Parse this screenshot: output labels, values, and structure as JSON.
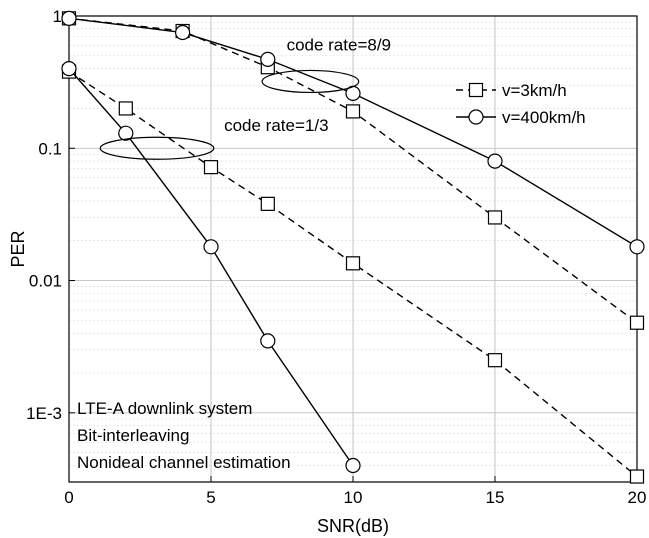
{
  "chart_data": {
    "type": "line",
    "title": "",
    "xlabel": "SNR(dB)",
    "ylabel": "PER",
    "xlim": [
      0,
      20
    ],
    "ylim": [
      0.0003,
      1
    ],
    "yscale": "log",
    "x_ticks": [
      0,
      5,
      10,
      15,
      20
    ],
    "x_tick_labels": [
      "0",
      "5",
      "10",
      "15",
      "20"
    ],
    "y_ticks": [
      1,
      0.1,
      0.01,
      0.001
    ],
    "y_tick_labels": [
      "1",
      "0.1",
      "0.01",
      "1E-3"
    ],
    "grid": true,
    "legend_position": "top-right",
    "series": [
      {
        "name": "v=3km/h",
        "group": "code rate=8/9",
        "line_style": "dashed",
        "marker": "square",
        "x": [
          0,
          4,
          7,
          10,
          15,
          20
        ],
        "y": [
          0.96,
          0.77,
          0.41,
          0.19,
          0.03,
          0.0048
        ]
      },
      {
        "name": "v=400km/h",
        "group": "code rate=8/9",
        "line_style": "solid",
        "marker": "circle",
        "x": [
          0,
          4,
          7,
          10,
          15,
          20
        ],
        "y": [
          0.96,
          0.75,
          0.47,
          0.26,
          0.08,
          0.018
        ]
      },
      {
        "name": "v=3km/h",
        "group": "code rate=1/3",
        "line_style": "dashed",
        "marker": "square",
        "x": [
          0,
          2,
          5,
          7,
          10,
          15,
          20
        ],
        "y": [
          0.38,
          0.2,
          0.072,
          0.038,
          0.0135,
          0.0025,
          0.00033
        ]
      },
      {
        "name": "v=400km/h",
        "group": "code rate=1/3",
        "line_style": "solid",
        "marker": "circle",
        "x": [
          0,
          2,
          5,
          7,
          10
        ],
        "y": [
          0.4,
          0.13,
          0.018,
          0.0035,
          0.0004
        ]
      }
    ],
    "legend": [
      {
        "label": "v=3km/h",
        "line_style": "dashed",
        "marker": "square"
      },
      {
        "label": "v=400km/h",
        "line_style": "solid",
        "marker": "circle"
      }
    ],
    "annotations": [
      {
        "text": "code rate=8/9",
        "x": 9.5,
        "y": 0.55
      },
      {
        "text": "code rate=1/3",
        "x": 7.3,
        "y": 0.135
      }
    ],
    "group_ellipses": [
      {
        "label": "code rate=8/9",
        "cx": 8.5,
        "cy": 0.32,
        "rx_data": 1.7
      },
      {
        "label": "code rate=1/3",
        "cx": 3.1,
        "cy": 0.1,
        "rx_data": 2.0
      }
    ],
    "text_block": [
      "LTE-A downlink system",
      "Bit-interleaving",
      "Nonideal channel estimation"
    ],
    "colors": {
      "lines": "#000000",
      "grid": "#bfbfbf",
      "background": "#ffffff"
    }
  }
}
